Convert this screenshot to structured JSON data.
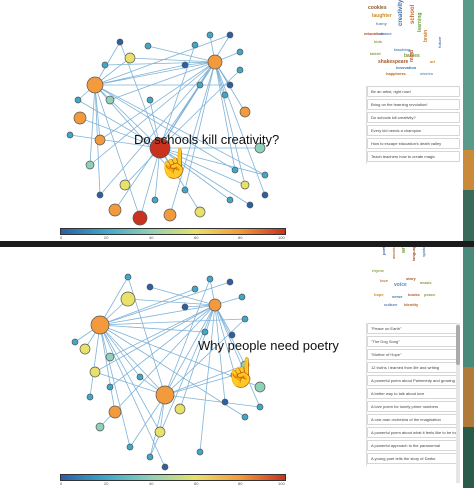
{
  "top": {
    "hover_label": "Do schools kill creativity?",
    "word_cloud": [
      {
        "text": "cookies",
        "color": "#8a5a2b"
      },
      {
        "text": "laughter",
        "color": "#c98a2c"
      },
      {
        "text": "funny",
        "color": "#6a8caa"
      },
      {
        "text": "creativity",
        "color": "#3a6aa6"
      },
      {
        "text": "school",
        "color": "#c06b2c"
      },
      {
        "text": "learning",
        "color": "#6a9e3a"
      },
      {
        "text": "education",
        "color": "#a74a2b"
      },
      {
        "text": "dance",
        "color": "#4d7fbf"
      },
      {
        "text": "kids",
        "color": "#8aa64a"
      },
      {
        "text": "brain",
        "color": "#c97a35"
      },
      {
        "text": "teaching",
        "color": "#5a8abf"
      },
      {
        "text": "shakespeare",
        "color": "#a55a30"
      },
      {
        "text": "babies",
        "color": "#7a9a3a"
      },
      {
        "text": "art",
        "color": "#d08a30"
      },
      {
        "text": "innovation",
        "color": "#3a7aaa"
      },
      {
        "text": "mind",
        "color": "#c05a30"
      },
      {
        "text": "talent",
        "color": "#8aa04a"
      },
      {
        "text": "future",
        "color": "#5a7abf"
      },
      {
        "text": "happiness",
        "color": "#b06a2a"
      },
      {
        "text": "stories",
        "color": "#6a9ac0"
      }
    ],
    "talks": [
      "Be an artist, right now!",
      "Bring on the learning revolution!",
      "Do schools kill creativity?",
      "Every kid needs a champion",
      "How to escape education's death valley",
      "Teach teachers how to create magic"
    ],
    "legend_ticks": [
      "0",
      "20",
      "40",
      "60",
      "80",
      "100"
    ]
  },
  "bottom": {
    "hover_label": "Why people need poetry",
    "word_cloud": [
      {
        "text": "poetry",
        "color": "#3a6aa6"
      },
      {
        "text": "words",
        "color": "#c06b2c"
      },
      {
        "text": "writing",
        "color": "#6a9e3a"
      },
      {
        "text": "language",
        "color": "#a74a2b"
      },
      {
        "text": "spoken",
        "color": "#4d7fbf"
      },
      {
        "text": "rhyme",
        "color": "#8aa64a"
      },
      {
        "text": "love",
        "color": "#c97a35"
      },
      {
        "text": "voice",
        "color": "#5a8abf"
      },
      {
        "text": "story",
        "color": "#a55a30"
      },
      {
        "text": "music",
        "color": "#7a9a3a"
      },
      {
        "text": "hope",
        "color": "#d08a30"
      },
      {
        "text": "verse",
        "color": "#3a7aaa"
      },
      {
        "text": "books",
        "color": "#c05a30"
      },
      {
        "text": "peace",
        "color": "#8aa04a"
      },
      {
        "text": "culture",
        "color": "#5a7abf"
      },
      {
        "text": "identity",
        "color": "#b06a2a"
      }
    ],
    "talks": [
      "\"Peace on Earth\"",
      "\"The Dog Song\"",
      "\"Mother of Hope\"",
      "12 truths I learned from life and writing",
      "A powerful poem about Palmmedy and growing older",
      "A better way to talk about love",
      "A love poem for lonely prime numbers",
      "A one-man orchestra of the imagination",
      "A powerful poem about what it feels like to be transgender",
      "A powerful approach to the paranormal",
      "A young poet tells the story of Darfur"
    ],
    "legend_ticks": [
      "0",
      "20",
      "40",
      "60",
      "80",
      "100"
    ]
  },
  "colors": {
    "edge": "#7fb3d8",
    "legend_stops": [
      "#2b5fa6",
      "#3fa7c9",
      "#8ed0b8",
      "#e8e16a",
      "#f29a3c",
      "#c8321e"
    ]
  }
}
